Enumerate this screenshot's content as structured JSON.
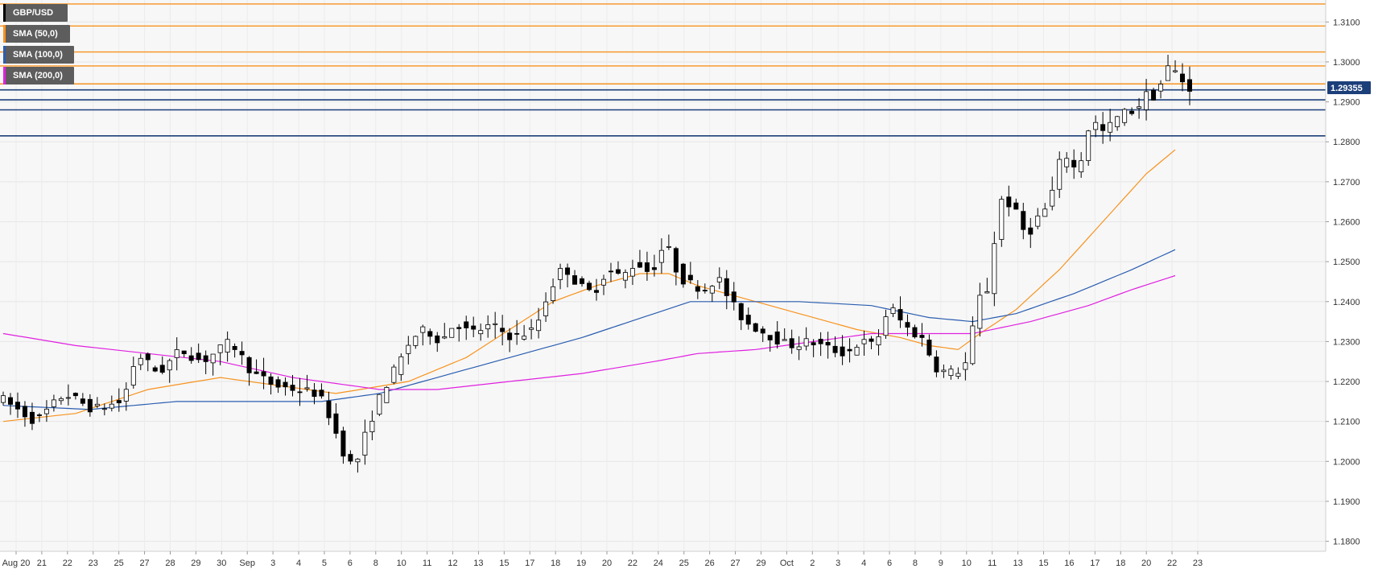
{
  "chart_data": {
    "type": "candlestick",
    "symbol": "GBP/USD",
    "indicators": [
      {
        "name": "SMA (50,0)",
        "color": "#f7931e"
      },
      {
        "name": "SMA (100,0)",
        "color": "#2a5db0"
      },
      {
        "name": "SMA (200,0)",
        "color": "#e020e0"
      }
    ],
    "last_price": "1.29355",
    "ylim": [
      1.1775,
      1.3155
    ],
    "y_ticks": [
      "1.3100",
      "1.3000",
      "1.2900",
      "1.2800",
      "1.2700",
      "1.2600",
      "1.2500",
      "1.2400",
      "1.2300",
      "1.2200",
      "1.2100",
      "1.2000",
      "1.1900",
      "1.1800"
    ],
    "x_ticks": [
      "Aug 20",
      "21",
      "22",
      "23",
      "25",
      "27",
      "28",
      "29",
      "30",
      "Sep",
      "3",
      "4",
      "5",
      "6",
      "8",
      "10",
      "11",
      "12",
      "13",
      "15",
      "17",
      "18",
      "19",
      "20",
      "22",
      "24",
      "25",
      "26",
      "27",
      "29",
      "Oct",
      "2",
      "3",
      "4",
      "6",
      "8",
      "9",
      "10",
      "11",
      "13",
      "15",
      "16",
      "17",
      "18",
      "20",
      "22",
      "23"
    ],
    "resistance_levels": [
      1.3145,
      1.309,
      1.3025,
      1.299,
      1.2945
    ],
    "support_levels": [
      1.293,
      1.2905,
      1.288,
      1.2815
    ],
    "grid": true,
    "legend_position": "top-left",
    "price_path": [
      [
        0,
        1.216
      ],
      [
        5,
        1.21
      ],
      [
        9,
        1.217
      ],
      [
        13,
        1.213
      ],
      [
        17,
        1.215
      ],
      [
        19,
        1.227
      ],
      [
        22,
        1.222
      ],
      [
        25,
        1.228
      ],
      [
        28,
        1.225
      ],
      [
        32,
        1.23
      ],
      [
        35,
        1.222
      ],
      [
        38,
        1.219
      ],
      [
        41,
        1.218
      ],
      [
        44,
        1.217
      ],
      [
        46,
        1.21
      ],
      [
        47,
        1.204
      ],
      [
        49,
        1.198
      ],
      [
        51,
        1.209
      ],
      [
        53,
        1.218
      ],
      [
        55,
        1.224
      ],
      [
        57,
        1.231
      ],
      [
        59,
        1.233
      ],
      [
        61,
        1.23
      ],
      [
        63,
        1.235
      ],
      [
        65,
        1.232
      ],
      [
        68,
        1.234
      ],
      [
        71,
        1.231
      ],
      [
        74,
        1.233
      ],
      [
        76,
        1.243
      ],
      [
        78,
        1.249
      ],
      [
        80,
        1.244
      ],
      [
        82,
        1.242
      ],
      [
        84,
        1.248
      ],
      [
        86,
        1.246
      ],
      [
        88,
        1.25
      ],
      [
        90,
        1.247
      ],
      [
        92,
        1.255
      ],
      [
        94,
        1.246
      ],
      [
        96,
        1.244
      ],
      [
        98,
        1.243
      ],
      [
        99,
        1.247
      ],
      [
        101,
        1.24
      ],
      [
        103,
        1.235
      ],
      [
        106,
        1.232
      ],
      [
        109,
        1.229
      ],
      [
        112,
        1.23
      ],
      [
        115,
        1.228
      ],
      [
        117,
        1.227
      ],
      [
        119,
        1.23
      ],
      [
        121,
        1.229
      ],
      [
        123,
        1.239
      ],
      [
        125,
        1.234
      ],
      [
        128,
        1.23
      ],
      [
        129,
        1.224
      ],
      [
        131,
        1.222
      ],
      [
        133,
        1.223
      ],
      [
        134,
        1.226
      ],
      [
        135,
        1.24
      ],
      [
        137,
        1.244
      ],
      [
        138,
        1.266
      ],
      [
        140,
        1.264
      ],
      [
        142,
        1.256
      ],
      [
        143,
        1.26
      ],
      [
        145,
        1.264
      ],
      [
        147,
        1.278
      ],
      [
        149,
        1.272
      ],
      [
        151,
        1.287
      ],
      [
        152,
        1.282
      ],
      [
        153,
        1.283
      ],
      [
        155,
        1.287
      ],
      [
        157,
        1.288
      ],
      [
        159,
        1.293
      ],
      [
        160,
        1.29
      ],
      [
        161,
        1.299
      ],
      [
        163,
        1.297
      ],
      [
        164,
        1.2935
      ]
    ],
    "sma50_path": [
      [
        0,
        1.21
      ],
      [
        10,
        1.212
      ],
      [
        20,
        1.218
      ],
      [
        30,
        1.221
      ],
      [
        38,
        1.219
      ],
      [
        46,
        1.217
      ],
      [
        56,
        1.22
      ],
      [
        64,
        1.226
      ],
      [
        70,
        1.233
      ],
      [
        76,
        1.24
      ],
      [
        82,
        1.244
      ],
      [
        88,
        1.247
      ],
      [
        92,
        1.247
      ],
      [
        96,
        1.244
      ],
      [
        104,
        1.24
      ],
      [
        112,
        1.236
      ],
      [
        118,
        1.233
      ],
      [
        124,
        1.231
      ],
      [
        128,
        1.229
      ],
      [
        132,
        1.228
      ],
      [
        135,
        1.232
      ],
      [
        140,
        1.238
      ],
      [
        146,
        1.248
      ],
      [
        152,
        1.26
      ],
      [
        158,
        1.272
      ],
      [
        162,
        1.278
      ]
    ],
    "sma100_path": [
      [
        0,
        1.214
      ],
      [
        12,
        1.213
      ],
      [
        24,
        1.215
      ],
      [
        36,
        1.215
      ],
      [
        44,
        1.215
      ],
      [
        52,
        1.217
      ],
      [
        60,
        1.221
      ],
      [
        70,
        1.226
      ],
      [
        80,
        1.231
      ],
      [
        90,
        1.237
      ],
      [
        95,
        1.24
      ],
      [
        100,
        1.24
      ],
      [
        110,
        1.24
      ],
      [
        120,
        1.239
      ],
      [
        128,
        1.236
      ],
      [
        134,
        1.235
      ],
      [
        140,
        1.237
      ],
      [
        148,
        1.242
      ],
      [
        156,
        1.248
      ],
      [
        162,
        1.253
      ]
    ],
    "sma200_path": [
      [
        0,
        1.232
      ],
      [
        10,
        1.229
      ],
      [
        20,
        1.227
      ],
      [
        30,
        1.225
      ],
      [
        40,
        1.221
      ],
      [
        52,
        1.218
      ],
      [
        60,
        1.218
      ],
      [
        70,
        1.22
      ],
      [
        80,
        1.222
      ],
      [
        90,
        1.225
      ],
      [
        96,
        1.227
      ],
      [
        104,
        1.228
      ],
      [
        112,
        1.23
      ],
      [
        120,
        1.232
      ],
      [
        128,
        1.232
      ],
      [
        134,
        1.232
      ],
      [
        142,
        1.235
      ],
      [
        150,
        1.239
      ],
      [
        156,
        1.243
      ],
      [
        162,
        1.2465
      ]
    ]
  }
}
